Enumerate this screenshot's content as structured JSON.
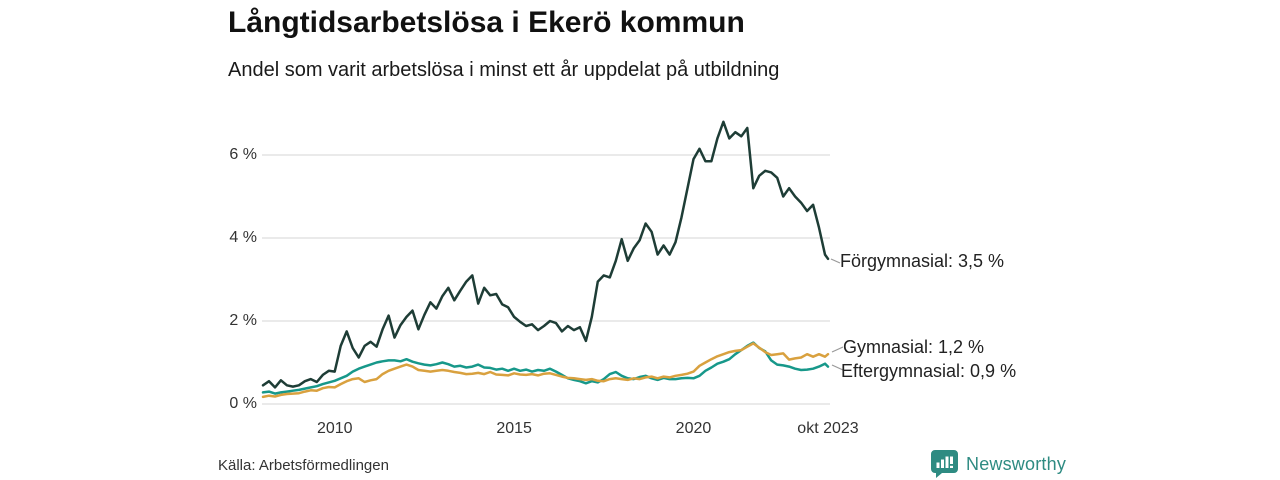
{
  "header": {
    "title": "Långtidsarbetslösa i Ekerö kommun",
    "subtitle": "Andel som varit arbetslösa i minst ett år uppdelat på utbildning"
  },
  "footer": {
    "source": "Källa: Arbetsförmedlingen",
    "brand": "Newsworthy"
  },
  "colors": {
    "forgymnasial": "#1e3d36",
    "gymnasial": "#d9a13f",
    "eftergymnasial": "#17988a",
    "grid": "#e4e4e4",
    "connector": "#999999",
    "brand_teal": "#2e8b82"
  },
  "chart_data": {
    "type": "line",
    "title": "Långtidsarbetslösa i Ekerö kommun",
    "subtitle": "Andel som varit arbetslösa i minst ett år uppdelat på utbildning",
    "unit": "%",
    "x_axis": {
      "start": "2008-01",
      "end": "2023-10",
      "months_total": 189,
      "ticks": [
        {
          "label": "2010",
          "month": 24
        },
        {
          "label": "2015",
          "month": 84
        },
        {
          "label": "2020",
          "month": 144
        },
        {
          "label": "okt 2023",
          "month": 189
        }
      ]
    },
    "y_axis": {
      "range": [
        0,
        7
      ],
      "ticks": [
        {
          "label": "6 %",
          "value": 6
        },
        {
          "label": "4 %",
          "value": 4
        },
        {
          "label": "2 %",
          "value": 2
        },
        {
          "label": "0 %",
          "value": 0
        }
      ]
    },
    "sample_step_months": 2,
    "legend_position": "right-end-labels",
    "grid": true,
    "series": [
      {
        "name": "Förgymnasial",
        "end_label": "Förgymnasial: 3,5 %",
        "end_value": 3.5,
        "color_key": "forgymnasial",
        "values": [
          0.45,
          0.55,
          0.4,
          0.57,
          0.45,
          0.42,
          0.45,
          0.55,
          0.6,
          0.53,
          0.7,
          0.8,
          0.78,
          1.4,
          1.75,
          1.35,
          1.12,
          1.4,
          1.5,
          1.38,
          1.8,
          2.13,
          1.6,
          1.9,
          2.1,
          2.25,
          1.8,
          2.15,
          2.45,
          2.3,
          2.6,
          2.8,
          2.5,
          2.73,
          2.95,
          3.1,
          2.42,
          2.8,
          2.62,
          2.65,
          2.4,
          2.33,
          2.1,
          1.98,
          1.88,
          1.92,
          1.78,
          1.88,
          2.0,
          1.95,
          1.75,
          1.88,
          1.78,
          1.85,
          1.52,
          2.1,
          2.95,
          3.1,
          3.05,
          3.45,
          3.97,
          3.45,
          3.75,
          3.95,
          4.35,
          4.15,
          3.6,
          3.82,
          3.6,
          3.9,
          4.5,
          5.2,
          5.9,
          6.15,
          5.85,
          5.85,
          6.4,
          6.8,
          6.4,
          6.55,
          6.45,
          6.65,
          5.2,
          5.5,
          5.62,
          5.58,
          5.45,
          5.0,
          5.2,
          5.0,
          4.85,
          4.65,
          4.8,
          4.25,
          3.6,
          3.5
        ]
      },
      {
        "name": "Gymnasial",
        "end_label": "Gymnasial: 1,2 %",
        "end_value": 1.2,
        "color_key": "gymnasial",
        "values": [
          0.17,
          0.2,
          0.18,
          0.22,
          0.24,
          0.25,
          0.26,
          0.3,
          0.33,
          0.32,
          0.38,
          0.41,
          0.4,
          0.48,
          0.55,
          0.6,
          0.62,
          0.53,
          0.57,
          0.6,
          0.72,
          0.8,
          0.85,
          0.9,
          0.95,
          0.9,
          0.82,
          0.8,
          0.78,
          0.8,
          0.82,
          0.8,
          0.77,
          0.75,
          0.72,
          0.73,
          0.75,
          0.72,
          0.77,
          0.71,
          0.7,
          0.69,
          0.74,
          0.71,
          0.7,
          0.72,
          0.69,
          0.73,
          0.74,
          0.7,
          0.66,
          0.63,
          0.62,
          0.6,
          0.58,
          0.6,
          0.56,
          0.55,
          0.6,
          0.62,
          0.6,
          0.58,
          0.62,
          0.6,
          0.64,
          0.66,
          0.62,
          0.66,
          0.64,
          0.68,
          0.7,
          0.73,
          0.78,
          0.92,
          1.0,
          1.08,
          1.15,
          1.2,
          1.25,
          1.28,
          1.3,
          1.38,
          1.46,
          1.36,
          1.25,
          1.18,
          1.2,
          1.22,
          1.07,
          1.1,
          1.12,
          1.2,
          1.14,
          1.2,
          1.14,
          1.2
        ]
      },
      {
        "name": "Eftergymnasial",
        "end_label": "Eftergymnasial: 0,9 %",
        "end_value": 0.9,
        "color_key": "eftergymnasial",
        "values": [
          0.28,
          0.3,
          0.25,
          0.28,
          0.3,
          0.32,
          0.34,
          0.37,
          0.4,
          0.43,
          0.48,
          0.52,
          0.56,
          0.62,
          0.68,
          0.78,
          0.85,
          0.9,
          0.95,
          1.0,
          1.03,
          1.05,
          1.05,
          1.03,
          1.08,
          1.02,
          0.98,
          0.95,
          0.93,
          0.96,
          1.0,
          0.96,
          0.9,
          0.92,
          0.88,
          0.9,
          0.95,
          0.88,
          0.87,
          0.83,
          0.85,
          0.8,
          0.85,
          0.8,
          0.83,
          0.78,
          0.82,
          0.8,
          0.85,
          0.78,
          0.7,
          0.62,
          0.58,
          0.55,
          0.5,
          0.55,
          0.52,
          0.6,
          0.72,
          0.77,
          0.68,
          0.62,
          0.6,
          0.65,
          0.68,
          0.62,
          0.58,
          0.63,
          0.6,
          0.6,
          0.62,
          0.63,
          0.62,
          0.68,
          0.8,
          0.88,
          0.97,
          1.02,
          1.08,
          1.2,
          1.3,
          1.4,
          1.48,
          1.35,
          1.27,
          1.05,
          0.95,
          0.93,
          0.9,
          0.85,
          0.82,
          0.83,
          0.85,
          0.9,
          0.97,
          0.9
        ]
      }
    ]
  }
}
